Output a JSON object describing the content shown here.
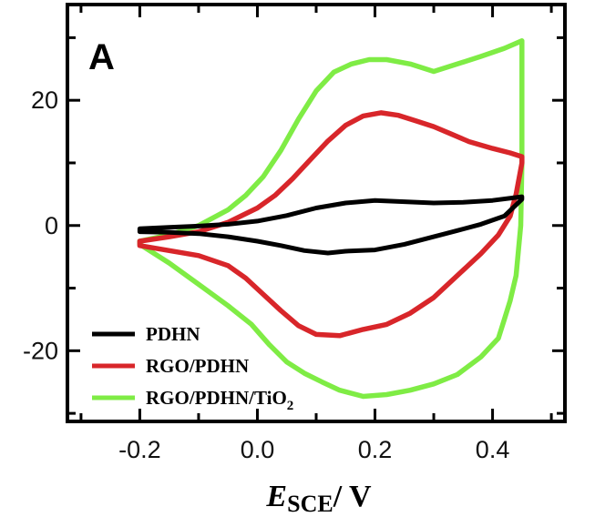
{
  "chart_data": {
    "type": "line",
    "panel_label": "A",
    "xlabel": {
      "symbol": "E",
      "subscript": "SCE",
      "unit": "/ V"
    },
    "ylabel": "",
    "xlim": [
      -0.32,
      0.52
    ],
    "ylim": [
      -31,
      35
    ],
    "xticks": [
      -0.2,
      0.0,
      0.2,
      0.4
    ],
    "xtick_labels": [
      "-0.2",
      "0.0",
      "0.2",
      "0.4"
    ],
    "yticks": [
      -20,
      0,
      20
    ],
    "ytick_labels": [
      "-20",
      "0",
      "20"
    ],
    "legend_position": "bottom-left",
    "series": [
      {
        "name": "PDHN",
        "color": "#000000",
        "x": [
          -0.2,
          -0.15,
          -0.1,
          -0.05,
          0.0,
          0.05,
          0.1,
          0.15,
          0.2,
          0.25,
          0.3,
          0.35,
          0.4,
          0.45,
          0.45,
          0.42,
          0.38,
          0.34,
          0.3,
          0.25,
          0.2,
          0.15,
          0.12,
          0.08,
          0.04,
          0.0,
          -0.05,
          -0.1,
          -0.15,
          -0.2
        ],
        "y": [
          -0.5,
          -0.3,
          -0.1,
          0.2,
          0.7,
          1.6,
          2.8,
          3.6,
          4.0,
          3.8,
          3.6,
          3.7,
          4.0,
          4.6,
          4.2,
          1.5,
          0.2,
          -0.8,
          -1.8,
          -3.0,
          -3.9,
          -4.1,
          -4.4,
          -4.0,
          -3.2,
          -2.5,
          -1.8,
          -1.3,
          -1.1,
          -1.0
        ]
      },
      {
        "name": "RGO/PDHN",
        "color": "#d8262a",
        "x": [
          -0.2,
          -0.15,
          -0.1,
          -0.05,
          0.0,
          0.03,
          0.06,
          0.09,
          0.12,
          0.15,
          0.18,
          0.21,
          0.24,
          0.27,
          0.3,
          0.33,
          0.36,
          0.4,
          0.43,
          0.45,
          0.45,
          0.44,
          0.43,
          0.41,
          0.38,
          0.34,
          0.3,
          0.26,
          0.22,
          0.18,
          0.14,
          0.1,
          0.07,
          0.04,
          0.01,
          -0.02,
          -0.05,
          -0.1,
          -0.15,
          -0.2
        ],
        "y": [
          -2.5,
          -1.8,
          -1.0,
          0.5,
          2.8,
          4.8,
          7.5,
          10.5,
          13.5,
          16.0,
          17.5,
          18.0,
          17.6,
          16.7,
          15.8,
          14.6,
          13.4,
          12.3,
          11.6,
          11.0,
          10.0,
          5.0,
          1.5,
          -1.5,
          -4.5,
          -8.0,
          -11.5,
          -14.0,
          -15.8,
          -16.6,
          -17.6,
          -17.4,
          -16.0,
          -13.6,
          -11.0,
          -8.4,
          -6.4,
          -4.8,
          -4.0,
          -3.2
        ]
      },
      {
        "name": "RGO/PDHN/TiO",
        "name_subscript": "2",
        "color": "#7fec45",
        "x": [
          -0.2,
          -0.15,
          -0.1,
          -0.05,
          -0.02,
          0.01,
          0.04,
          0.07,
          0.1,
          0.13,
          0.16,
          0.19,
          0.22,
          0.26,
          0.3,
          0.34,
          0.38,
          0.42,
          0.45,
          0.45,
          0.448,
          0.44,
          0.43,
          0.42,
          0.41,
          0.38,
          0.34,
          0.3,
          0.26,
          0.22,
          0.18,
          0.14,
          0.11,
          0.08,
          0.05,
          0.02,
          -0.01,
          -0.05,
          -0.1,
          -0.15,
          -0.2
        ],
        "y": [
          -2.5,
          -1.5,
          0.0,
          2.5,
          4.8,
          7.8,
          12.0,
          17.0,
          21.5,
          24.5,
          25.8,
          26.5,
          26.5,
          25.8,
          24.6,
          25.8,
          27.0,
          28.3,
          29.5,
          10.0,
          0.0,
          -8.0,
          -12.0,
          -15.0,
          -18.0,
          -21.0,
          -23.8,
          -25.3,
          -26.3,
          -27.0,
          -27.3,
          -26.3,
          -25.0,
          -23.6,
          -21.8,
          -19.0,
          -15.8,
          -12.8,
          -9.4,
          -6.0,
          -3.0
        ]
      }
    ]
  }
}
